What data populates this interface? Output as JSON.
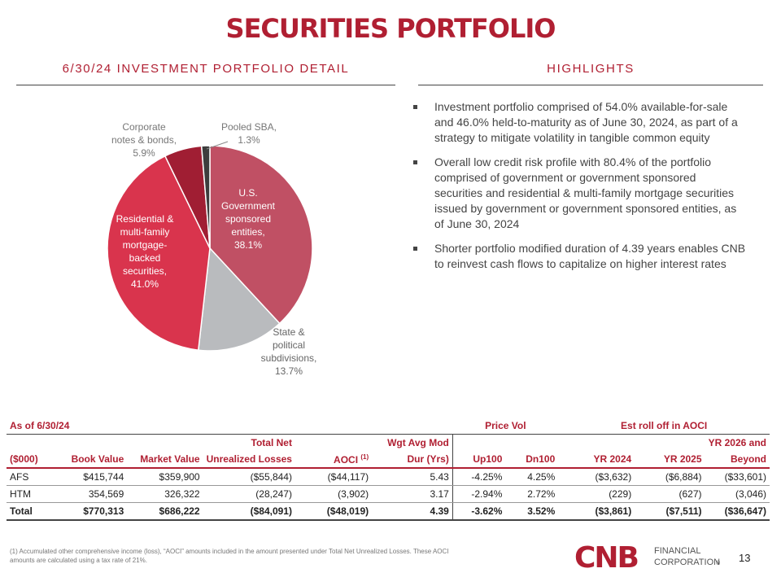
{
  "page": {
    "title": "SECURITIES PORTFOLIO",
    "left_heading": "6/30/24 INVESTMENT PORTFOLIO DETAIL",
    "right_heading": "HIGHLIGHTS",
    "page_number": "13"
  },
  "chart_data": {
    "type": "pie",
    "title": "",
    "slices": [
      {
        "label_lines": [
          "U.S.",
          "Government",
          "sponsored",
          "entities,",
          "38.1%"
        ],
        "value": 38.1,
        "color": "#c05064"
      },
      {
        "label_lines": [
          "State &",
          "political",
          "subdivisions,",
          "13.7%"
        ],
        "value": 13.7,
        "color": "#b9bbbe"
      },
      {
        "label_lines": [
          "Residential &",
          "multi-family",
          "mortgage-",
          "backed",
          "securities,",
          "41.0%"
        ],
        "value": 41.0,
        "color": "#d9344d"
      },
      {
        "label_lines": [
          "Corporate",
          "notes & bonds,",
          "5.9%"
        ],
        "value": 5.9,
        "color": "#a01e33"
      },
      {
        "label_lines": [
          "Pooled SBA,",
          "1.3%"
        ],
        "value": 1.3,
        "color": "#3d3d3d"
      }
    ]
  },
  "highlights": [
    "Investment portfolio comprised of 54.0% available-for-sale and 46.0% held-to-maturity as of June 30, 2024, as part of a strategy to mitigate volatility in tangible common equity",
    "Overall low credit risk profile with 80.4% of the portfolio comprised of government or government sponsored securities and residential & multi-family mortgage securities issued by government or government sponsored entities, as of June 30, 2024",
    "Shorter portfolio modified duration of 4.39 years enables CNB to reinvest cash flows to capitalize on higher interest rates"
  ],
  "table": {
    "as_of": "As of 6/30/24",
    "group_price_vol": "Price Vol",
    "group_roll_off": "Est roll off in AOCI",
    "header_top": {
      "total_net": "Total Net",
      "wgt_avg": "Wgt Avg Mod",
      "yr2026": "YR 2026 and"
    },
    "header_bottom": {
      "units": "($000)",
      "book": "Book Value",
      "market": "Market Value",
      "unrealized": "Unrealized Losses",
      "aoci": "AOCI",
      "aoci_sup": "(1)",
      "dur": "Dur (Yrs)",
      "up100": "Up100",
      "dn100": "Dn100",
      "yr2024": "YR 2024",
      "yr2025": "YR 2025",
      "beyond": "Beyond"
    },
    "rows": [
      {
        "name": "AFS",
        "book": "$415,744",
        "market": "$359,900",
        "unrealized": "($55,844)",
        "aoci": "($44,117)",
        "dur": "5.43",
        "up100": "-4.25%",
        "dn100": "4.25%",
        "yr2024": "($3,632)",
        "yr2025": "($6,884)",
        "beyond": "($33,601)"
      },
      {
        "name": "HTM",
        "book": "354,569",
        "market": "326,322",
        "unrealized": "(28,247)",
        "aoci": "(3,902)",
        "dur": "3.17",
        "up100": "-2.94%",
        "dn100": "2.72%",
        "yr2024": "(229)",
        "yr2025": "(627)",
        "beyond": "(3,046)"
      },
      {
        "name": "Total",
        "book": "$770,313",
        "market": "$686,222",
        "unrealized": "($84,091)",
        "aoci": "($48,019)",
        "dur": "4.39",
        "up100": "-3.62%",
        "dn100": "3.52%",
        "yr2024": "($3,861)",
        "yr2025": "($7,511)",
        "beyond": "($36,647)"
      }
    ]
  },
  "footnote": "(1) Accumulated other comprehensive income (loss), “AOCI” amounts included in the amount presented under Total Net Unrealized Losses. These AOCI amounts are calculated using a tax rate of 21%.",
  "logo": {
    "mark": "CNB",
    "line1": "FINANCIAL",
    "line2": "CORPORATION",
    "reg": "®",
    "color": "#b01f32"
  }
}
